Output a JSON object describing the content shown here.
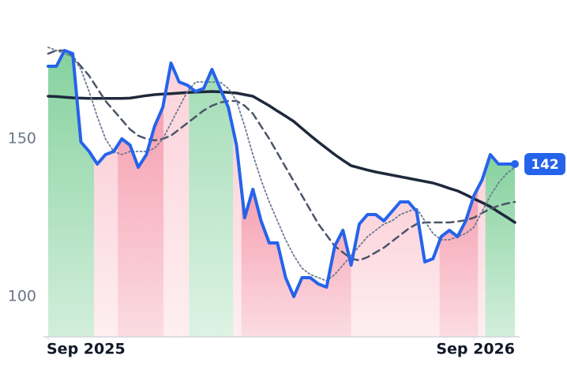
{
  "chart_data": {
    "type": "line",
    "x": [
      0,
      1,
      2,
      3,
      4,
      5,
      6,
      7,
      8,
      9,
      10,
      11,
      12,
      13,
      14,
      15,
      16,
      17,
      18,
      19,
      20,
      21,
      22,
      23,
      24,
      25,
      26,
      27,
      28,
      29,
      30,
      31,
      32,
      33,
      34,
      35,
      36,
      37,
      38,
      39,
      40,
      41,
      42,
      43,
      44,
      45,
      46,
      47,
      48,
      49,
      50,
      51,
      52,
      53,
      54,
      55,
      56,
      57
    ],
    "xlim": [
      0,
      57
    ],
    "xticks": [
      {
        "value": 0,
        "label": "Sep 2025"
      },
      {
        "value": 52,
        "label": "Sep 2026"
      }
    ],
    "ylim": [
      87.25,
      189
    ],
    "yticks": [
      100,
      150
    ],
    "grid": false,
    "regimes": [
      {
        "start": 0,
        "end": 5.6,
        "color": "#7fcf99"
      },
      {
        "start": 5.6,
        "end": 8.5,
        "color": "#fbd0d8"
      },
      {
        "start": 8.5,
        "end": 14.1,
        "color": "#f59aac"
      },
      {
        "start": 14.1,
        "end": 17.2,
        "color": "#fbd0d8"
      },
      {
        "start": 17.2,
        "end": 22.6,
        "color": "#9edbb2"
      },
      {
        "start": 22.6,
        "end": 23.6,
        "color": "#fbd0d8"
      },
      {
        "start": 23.6,
        "end": 37,
        "color": "#f59aac"
      },
      {
        "start": 37,
        "end": 47.8,
        "color": "#fbd0d8"
      },
      {
        "start": 47.8,
        "end": 52.5,
        "color": "#f59aac"
      },
      {
        "start": 52.5,
        "end": 53.4,
        "color": "#fbd0d8"
      },
      {
        "start": 53.4,
        "end": 57,
        "color": "#7fcf99"
      }
    ],
    "series": [
      {
        "color": "#1e293b",
        "style": "thick",
        "values": [
          163.5,
          163.4,
          163.2,
          163,
          162.9,
          162.8,
          162.8,
          162.8,
          162.8,
          162.8,
          162.9,
          163.3,
          163.7,
          164,
          164.2,
          164.3,
          164.5,
          164.7,
          164.8,
          164.9,
          165,
          164.9,
          164.7,
          164.5,
          164,
          163.5,
          162,
          160.5,
          158.8,
          157.2,
          155.5,
          153.3,
          151.1,
          149,
          147,
          145,
          143.2,
          141.5,
          140.8,
          140.1,
          139.5,
          139,
          138.5,
          138,
          137.5,
          137,
          136.5,
          136,
          135.2,
          134.3,
          133.5,
          132.3,
          131,
          129.8,
          128.5,
          126.8,
          125.2,
          123.5
        ]
      },
      {
        "color": "#4b5568",
        "style": "dashed",
        "values": [
          177,
          178,
          178,
          176,
          173,
          170,
          166,
          162,
          159,
          156,
          153,
          151,
          150,
          149.5,
          150,
          151,
          153,
          155,
          157,
          159,
          160.5,
          161.5,
          162,
          162,
          160.5,
          158,
          154,
          150,
          145.5,
          141,
          136.5,
          132,
          127.5,
          123,
          119.5,
          116,
          114,
          112,
          111.5,
          112.5,
          114,
          115.5,
          117.5,
          119.5,
          121.5,
          123,
          123.5,
          123.5,
          123.5,
          123.5,
          123.8,
          124.2,
          125,
          126.5,
          127.8,
          128.8,
          129.5,
          130
        ]
      },
      {
        "color": "#6b7a90",
        "style": "dotted",
        "values": [
          179,
          178,
          177,
          176,
          172,
          165,
          157,
          150,
          146,
          145,
          146,
          146,
          146,
          147,
          150,
          155,
          160,
          165,
          168,
          168,
          168,
          168,
          166,
          162,
          154,
          145,
          137,
          130,
          124,
          118,
          113,
          109,
          107,
          106,
          105,
          107,
          110,
          113,
          116,
          119,
          121,
          123,
          124,
          126,
          127,
          128,
          124,
          120,
          118,
          118,
          119,
          120,
          122,
          127,
          132,
          136,
          139,
          141
        ]
      },
      {
        "color": "#2563eb",
        "style": "price",
        "values": [
          173,
          173,
          178,
          177,
          149,
          146,
          142,
          145,
          146,
          150,
          148,
          141,
          145,
          154,
          160,
          174,
          168,
          167,
          165,
          166,
          172,
          166,
          160,
          148,
          125,
          134,
          124,
          117,
          117,
          106,
          100,
          106,
          106,
          104,
          103,
          116,
          121,
          110,
          123,
          126,
          126,
          124,
          127,
          130,
          130,
          127,
          111,
          112,
          119,
          121,
          119,
          124,
          132,
          137,
          145,
          142,
          142,
          142
        ]
      }
    ]
  }
}
